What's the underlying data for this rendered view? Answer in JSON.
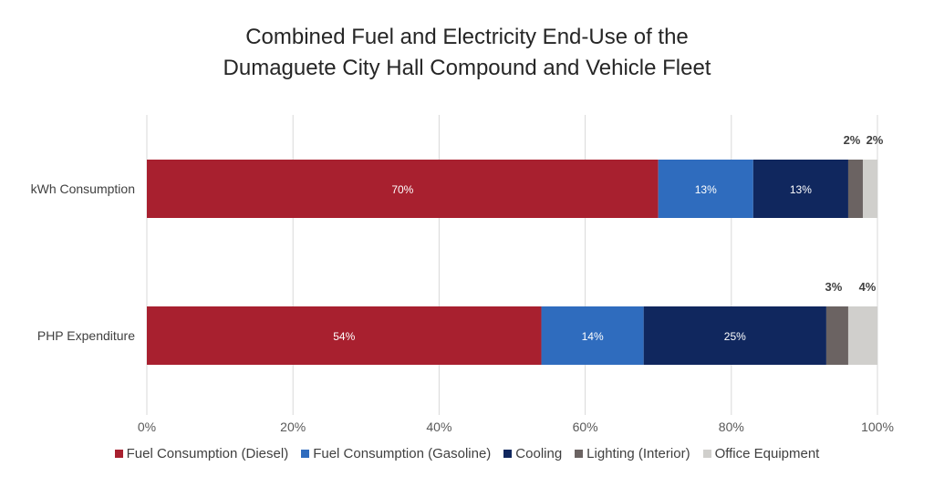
{
  "title_lines": [
    "Combined Fuel and Electricity End-Use of the",
    "Dumaguete City Hall Compound and Vehicle Fleet"
  ],
  "chart_data": {
    "type": "bar",
    "orientation": "horizontal",
    "stacked": true,
    "title": "Combined Fuel and Electricity End-Use of the Dumaguete City Hall Compound and Vehicle Fleet",
    "categories": [
      "kWh Consumption",
      "PHP Expenditure"
    ],
    "series": [
      {
        "name": "Fuel Consumption (Diesel)",
        "color": "#A8202F",
        "values": [
          70,
          54
        ],
        "labels": [
          "70%",
          "54%"
        ]
      },
      {
        "name": "Fuel Consumption (Gasoline)",
        "color": "#2F6CBE",
        "values": [
          13,
          14
        ],
        "labels": [
          "13%",
          "14%"
        ]
      },
      {
        "name": "Cooling",
        "color": "#10275E",
        "values": [
          13,
          25
        ],
        "labels": [
          "13%",
          "25%"
        ]
      },
      {
        "name": "Lighting (Interior)",
        "color": "#6B6362",
        "values": [
          2,
          3
        ],
        "labels": [
          "2%",
          "3%"
        ]
      },
      {
        "name": "Office Equipment",
        "color": "#D0CFCC",
        "values": [
          2,
          4
        ],
        "labels": [
          "2%",
          "4%"
        ]
      }
    ],
    "xlim": [
      0,
      100
    ],
    "x_ticks": [
      "0%",
      "20%",
      "40%",
      "60%",
      "80%",
      "100%"
    ],
    "grid": true,
    "legend_position": "bottom"
  }
}
